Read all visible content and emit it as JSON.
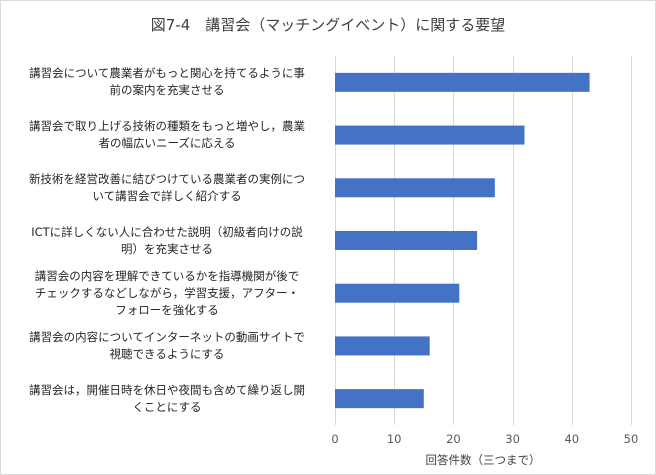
{
  "chart_data": {
    "type": "bar",
    "orientation": "horizontal",
    "title": "図7-4　講習会（マッチングイベント）に関する要望",
    "xlabel": "回答件数（三つまで）",
    "ylabel": "",
    "xlim": [
      0,
      50
    ],
    "ticks": [
      0,
      10,
      20,
      30,
      40,
      50
    ],
    "grid": true,
    "bar_color": "#4472c4",
    "categories": [
      [
        "講習会について農業者がもっと関心を持てるように事",
        "前の案内を充実させる"
      ],
      [
        "講習会で取り上げる技術の種類をもっと増やし，農業",
        "者の幅広いニーズに応える"
      ],
      [
        "新技術を経営改善に結びつけている農業者の実例につ",
        "いて講習会で詳しく紹介する"
      ],
      [
        "ICTに詳しくない人に合わせた説明（初級者向けの説",
        "明）を充実させる"
      ],
      [
        "講習会の内容を理解できているかを指導機関が後で",
        "チェックするなどしながら，学習支援，アフター・",
        "フォローを強化する"
      ],
      [
        "講習会の内容についてインターネットの動画サイトで",
        "視聴できるようにする"
      ],
      [
        "講習会は，開催日時を休日や夜間も含めて繰り返し開",
        "くことにする"
      ]
    ],
    "values": [
      43,
      32,
      27,
      24,
      21,
      16,
      15
    ]
  }
}
